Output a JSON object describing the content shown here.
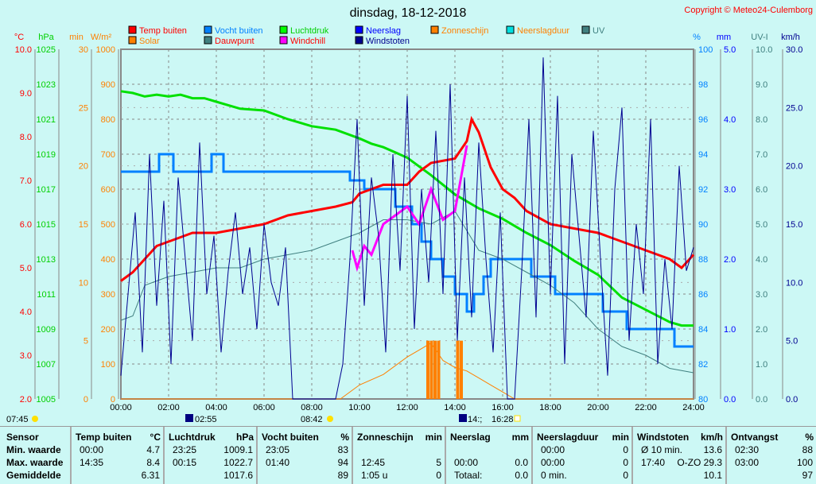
{
  "title": "dinsdag, 18-12-2018",
  "copyright": "Copyright © Meteo24-Culemborg",
  "legend": [
    {
      "label": "Temp buiten",
      "color": "#ff0000",
      "text": "#ff0000"
    },
    {
      "label": "Vocht buiten",
      "color": "#0080ff",
      "text": "#0080ff"
    },
    {
      "label": "Luchtdruk",
      "color": "#00ff00",
      "text": "#00d000"
    },
    {
      "label": "Neerslag",
      "color": "#0000ff",
      "text": "#0000ff"
    },
    {
      "label": "Zonneschijn",
      "color": "#ff8000",
      "text": "#ff8000"
    },
    {
      "label": "Neerslagduur",
      "color": "#00e0e0",
      "text": "#ff8000"
    },
    {
      "label": "UV",
      "color": "#408080",
      "text": "#408080"
    },
    {
      "label": "Solar",
      "color": "#ff8000",
      "text": "#ff8000"
    },
    {
      "label": "Dauwpunt",
      "color": "#408080",
      "text": "#ff0000"
    },
    {
      "label": "Windchill",
      "color": "#ff00ff",
      "text": "#ff0000"
    },
    {
      "label": "Windstoten",
      "color": "#000090",
      "text": "#000090"
    }
  ],
  "sun": {
    "rise": "07:45",
    "moonset": "02:55",
    "noon": "08:42",
    "moonrise": "14:;",
    "set": "16:28"
  },
  "chart_data": {
    "type": "line",
    "xlabel_ticks": [
      "00:00",
      "02:00",
      "04:00",
      "06:00",
      "08:00",
      "10:00",
      "12:00",
      "14:00",
      "16:00",
      "18:00",
      "20:00",
      "22:00",
      "24:00"
    ],
    "xlim": [
      0,
      24
    ],
    "axes": {
      "temp": {
        "unit": "°C",
        "ylim": [
          2,
          10
        ],
        "ticks": [
          "2.0",
          "3.0",
          "4.0",
          "5.0",
          "6.0",
          "7.0",
          "8.0",
          "9.0",
          "10.0"
        ],
        "color": "#ff0000"
      },
      "press": {
        "unit": "hPa",
        "ylim": [
          1005,
          1025
        ],
        "ticks": [
          "1005",
          "1007",
          "1009",
          "1011",
          "1013",
          "1015",
          "1017",
          "1019",
          "1021",
          "1023",
          "1025"
        ],
        "color": "#00d000"
      },
      "min": {
        "unit": "min",
        "ylim": [
          0,
          30
        ],
        "ticks": [
          "0",
          "5",
          "10",
          "15",
          "20",
          "25",
          "30"
        ],
        "color": "#ff8000"
      },
      "solar": {
        "unit": "W/m²",
        "ylim": [
          0,
          1000
        ],
        "ticks": [
          "0",
          "100",
          "200",
          "300",
          "400",
          "500",
          "600",
          "700",
          "800",
          "900",
          "1000"
        ],
        "color": "#ff8000"
      },
      "hum": {
        "unit": "%",
        "ylim": [
          80,
          100
        ],
        "ticks": [
          "80",
          "82",
          "84",
          "86",
          "88",
          "90",
          "92",
          "94",
          "96",
          "98",
          "100"
        ],
        "color": "#0080ff"
      },
      "rain": {
        "unit": "mm",
        "ylim": [
          0,
          5
        ],
        "ticks": [
          "0.0",
          "1.0",
          "2.0",
          "3.0",
          "4.0",
          "5.0"
        ],
        "color": "#0000ff"
      },
      "uv": {
        "unit": "UV-I",
        "ylim": [
          0,
          10
        ],
        "ticks": [
          "0.0",
          "1.0",
          "2.0",
          "3.0",
          "4.0",
          "5.0",
          "6.0",
          "7.0",
          "8.0",
          "9.0",
          "10.0"
        ],
        "color": "#408080"
      },
      "wind": {
        "unit": "km/h",
        "ylim": [
          0,
          30
        ],
        "ticks": [
          "0.0",
          "5.0",
          "10.0",
          "15.0",
          "20.0",
          "25.0",
          "30.0"
        ],
        "color": "#000090"
      }
    },
    "series": [
      {
        "name": "Luchtdruk",
        "axis": "press",
        "color": "#00e000",
        "x": [
          0,
          0.5,
          1,
          1.5,
          2,
          2.5,
          3,
          3.5,
          4,
          5,
          6,
          7,
          8,
          9,
          10,
          10.5,
          11,
          11.5,
          12,
          13,
          14,
          15,
          16,
          17,
          18,
          19,
          20,
          21,
          22,
          23,
          23.5,
          24
        ],
        "y": [
          1022.6,
          1022.5,
          1022.3,
          1022.4,
          1022.3,
          1022.4,
          1022.2,
          1022.2,
          1022.0,
          1021.6,
          1021.5,
          1021.0,
          1020.6,
          1020.4,
          1019.9,
          1019.6,
          1019.4,
          1019.1,
          1018.8,
          1017.8,
          1016.7,
          1015.9,
          1015.3,
          1014.5,
          1013.8,
          1012.9,
          1012.1,
          1010.8,
          1010.1,
          1009.4,
          1009.2,
          1009.2
        ]
      },
      {
        "name": "Vocht buiten",
        "axis": "hum",
        "color": "#0080ff",
        "step": true,
        "x": [
          0,
          1.6,
          2.2,
          3.8,
          4.3,
          9.6,
          10.2,
          11.5,
          12.2,
          12.6,
          13.0,
          13.5,
          14.0,
          14.5,
          14.8,
          15.2,
          15.5,
          16.2,
          17.2,
          18.2,
          20.2,
          21.2,
          23.2,
          24
        ],
        "y": [
          93,
          94,
          93,
          94,
          93,
          92.5,
          92,
          91,
          90,
          89,
          88,
          87,
          86,
          85,
          86,
          87,
          88,
          88,
          87,
          86,
          85,
          84,
          83,
          83
        ]
      },
      {
        "name": "Dauwpunt",
        "axis": "temp",
        "color": "#408080",
        "x": [
          0,
          0.5,
          1,
          1.5,
          2,
          3,
          4,
          5,
          6,
          7,
          8,
          9,
          10,
          11,
          12,
          13,
          14,
          15,
          16,
          17,
          18,
          19,
          20,
          21,
          22,
          23,
          24
        ],
        "y": [
          3.8,
          3.9,
          4.6,
          4.7,
          4.8,
          4.9,
          5.0,
          5.0,
          5.2,
          5.3,
          5.4,
          5.6,
          5.8,
          6.1,
          6.1,
          6.0,
          6.3,
          5.4,
          5.2,
          4.9,
          4.6,
          4.2,
          3.6,
          3.2,
          3.0,
          2.7,
          2.6
        ]
      },
      {
        "name": "Solar",
        "axis": "solar",
        "color": "#ff8000",
        "x": [
          0,
          9.2,
          10,
          11,
          12,
          12.5,
          13,
          13.5,
          14,
          14.5,
          15,
          15.5,
          16,
          16.5,
          24
        ],
        "y": [
          0,
          0,
          40,
          70,
          120,
          140,
          160,
          110,
          90,
          80,
          60,
          40,
          20,
          0,
          0
        ]
      },
      {
        "name": "Temp buiten",
        "axis": "temp",
        "color": "#ff0000",
        "width": 3,
        "x": [
          0,
          0.5,
          1,
          1.5,
          2,
          2.5,
          3,
          4,
          5,
          6,
          7,
          8,
          9,
          9.7,
          10,
          11,
          12,
          12.5,
          13,
          14,
          14.5,
          14.7,
          15,
          15.5,
          16,
          16.5,
          17,
          18,
          19,
          20,
          21,
          22,
          23,
          23.5,
          24
        ],
        "y": [
          4.7,
          4.9,
          5.2,
          5.5,
          5.6,
          5.7,
          5.8,
          5.8,
          5.9,
          6.0,
          6.2,
          6.3,
          6.4,
          6.5,
          6.7,
          6.9,
          6.9,
          7.2,
          7.4,
          7.5,
          7.9,
          8.4,
          8.1,
          7.3,
          6.8,
          6.6,
          6.3,
          6.0,
          5.9,
          5.8,
          5.6,
          5.4,
          5.2,
          5.0,
          5.3
        ]
      },
      {
        "name": "Windchill",
        "axis": "temp",
        "color": "#ff00ff",
        "x": [
          9.7,
          9.9,
          10.2,
          10.5,
          11,
          11.5,
          12,
          12.5,
          13,
          13.5,
          14,
          14.5
        ],
        "y": [
          5.4,
          5.0,
          5.5,
          5.3,
          6.0,
          6.2,
          6.4,
          6.0,
          6.8,
          6.1,
          6.3,
          7.8
        ]
      },
      {
        "name": "Windstoten",
        "axis": "wind",
        "color": "#000090",
        "width": 1,
        "x": [
          0,
          0.3,
          0.6,
          0.9,
          1.2,
          1.5,
          1.8,
          2.1,
          2.4,
          2.7,
          3.0,
          3.3,
          3.6,
          3.9,
          4.2,
          4.5,
          4.8,
          5.1,
          5.4,
          5.7,
          6.0,
          6.3,
          6.6,
          6.9,
          7.2,
          7.5,
          7.8,
          8.1,
          8.4,
          8.7,
          9.0,
          9.3,
          9.6,
          9.9,
          10.2,
          10.5,
          10.8,
          11.1,
          11.4,
          11.7,
          12.0,
          12.3,
          12.6,
          12.9,
          13.2,
          13.5,
          13.8,
          14.1,
          14.4,
          14.7,
          15.0,
          15.3,
          15.6,
          15.9,
          16.2,
          16.5,
          16.8,
          17.1,
          17.4,
          17.7,
          18.0,
          18.3,
          18.6,
          18.9,
          19.2,
          19.5,
          19.8,
          20.1,
          20.4,
          20.7,
          21.0,
          21.3,
          21.6,
          21.9,
          22.2,
          22.5,
          22.8,
          23.1,
          23.4,
          23.7,
          24
        ],
        "y": [
          2,
          9,
          16,
          4,
          21,
          8,
          17,
          3,
          19,
          12,
          5,
          22,
          9,
          14,
          4,
          11,
          16,
          9,
          13,
          6,
          15,
          10,
          8,
          13,
          0,
          0,
          0,
          0,
          0,
          0,
          0,
          3,
          12,
          24,
          8,
          19,
          14,
          4,
          21,
          11,
          26,
          6,
          18,
          10,
          23,
          9,
          27,
          5,
          19,
          7,
          22,
          12,
          4,
          16,
          0,
          0,
          11,
          24,
          7,
          29.3,
          9,
          26,
          3,
          21,
          14,
          7,
          23,
          12,
          2,
          18,
          25,
          5,
          15,
          9,
          24,
          3,
          12,
          6,
          20,
          11,
          13
        ]
      }
    ],
    "bars": [
      {
        "name": "Zonneschijn",
        "axis": "min",
        "color": "#ff8000",
        "x": [
          12.8,
          12.95,
          13.1,
          13.25,
          14.05,
          14.2
        ],
        "y": [
          5,
          5,
          5,
          5,
          5,
          5
        ]
      }
    ]
  },
  "table": {
    "rows": [
      "Sensor",
      "Min. waarde",
      "Max. waarde",
      "Gemiddelde"
    ],
    "cols": [
      {
        "h": "Temp buiten",
        "u": "°C",
        "c": [
          [
            "00:00",
            "4.7"
          ],
          [
            "14:35",
            "8.4"
          ],
          [
            "",
            "6.31"
          ]
        ]
      },
      {
        "h": "Luchtdruk",
        "u": "hPa",
        "c": [
          [
            "23:25",
            "1009.1"
          ],
          [
            "00:15",
            "1022.7"
          ],
          [
            "",
            "1017.6"
          ]
        ]
      },
      {
        "h": "Vocht buiten",
        "u": "%",
        "c": [
          [
            "23:05",
            "83"
          ],
          [
            "01:40",
            "94"
          ],
          [
            "",
            "89"
          ]
        ]
      },
      {
        "h": "Zonneschijn",
        "u": "min",
        "c": [
          [
            "",
            ""
          ],
          [
            "12:45",
            "5"
          ],
          [
            "1:05 u",
            "0"
          ]
        ]
      },
      {
        "h": "Neerslag",
        "u": "mm",
        "c": [
          [
            "",
            ""
          ],
          [
            "00:00",
            "0.0"
          ],
          [
            "Totaal:",
            "0.0"
          ]
        ]
      },
      {
        "h": "Neerslagduur",
        "u": "min",
        "c": [
          [
            "00:00",
            "0"
          ],
          [
            "00:00",
            "0"
          ],
          [
            "0 min.",
            "0"
          ]
        ]
      },
      {
        "h": "Windstoten",
        "u": "km/h",
        "c": [
          [
            "Ø 10 min.",
            "13.6"
          ],
          [
            "17:40",
            "O-ZO 29.3"
          ],
          [
            "",
            "10.1"
          ]
        ]
      },
      {
        "h": "Ontvangst",
        "u": "%",
        "c": [
          [
            "02:30",
            "88"
          ],
          [
            "03:00",
            "100"
          ],
          [
            "",
            "97"
          ]
        ]
      }
    ]
  }
}
